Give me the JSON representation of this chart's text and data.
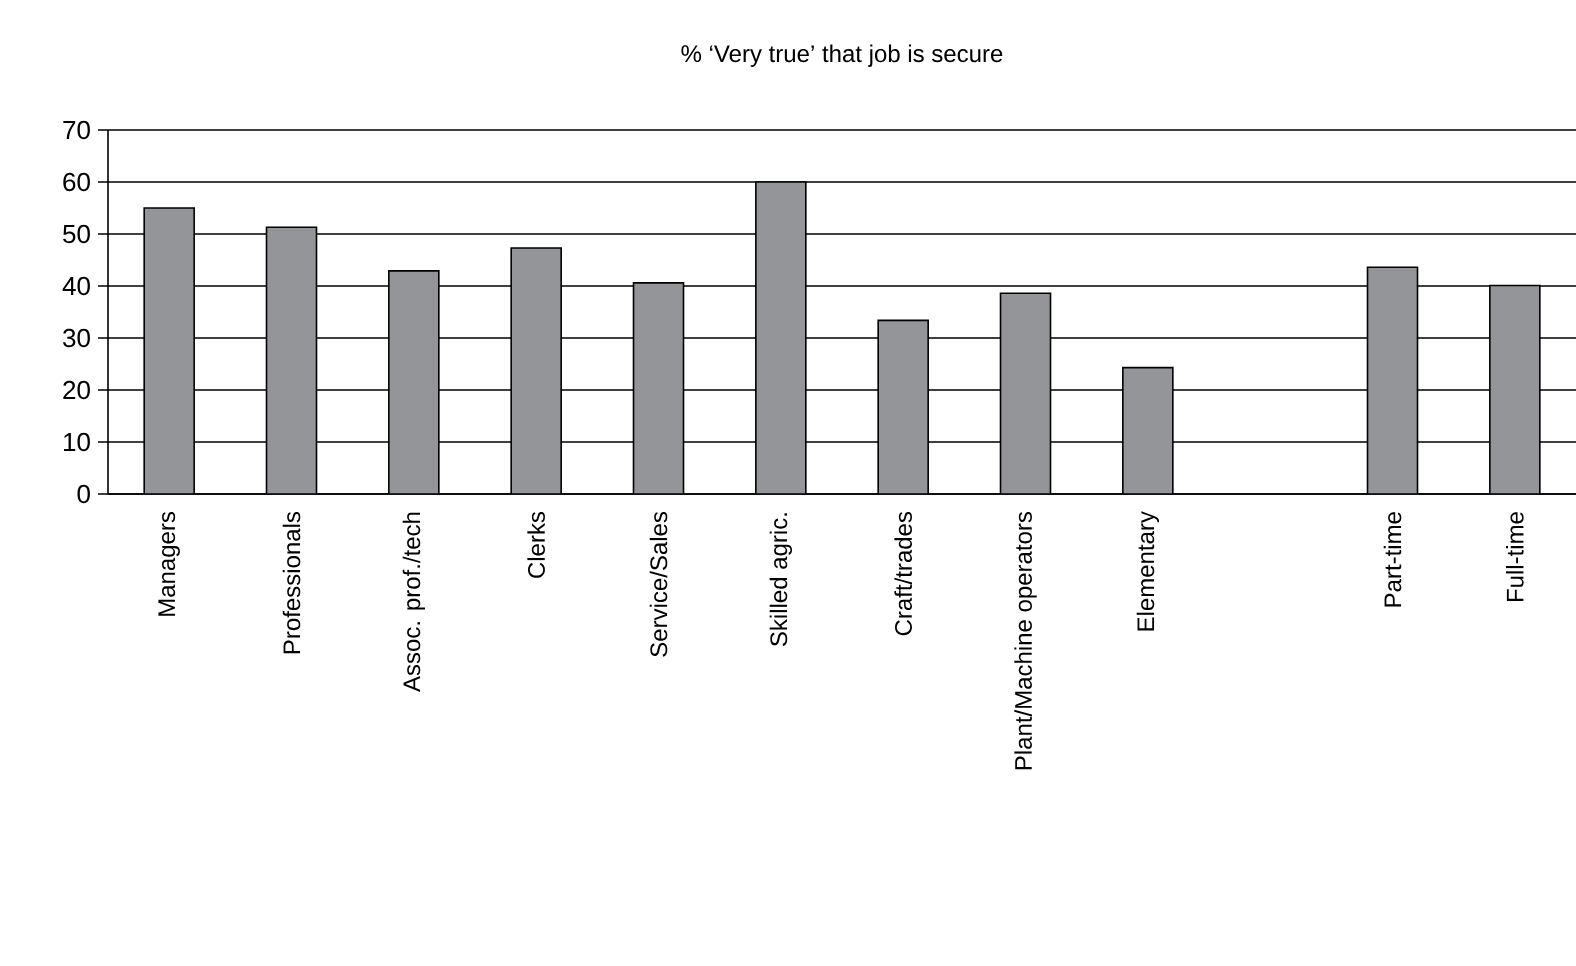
{
  "chart_data": {
    "type": "bar",
    "title": "% ‘Very true’ that job is secure",
    "categories": [
      "Managers",
      "Professionals",
      "Assoc. prof./tech",
      "Clerks",
      "Service/Sales",
      "Skilled agric.",
      "Craft/trades",
      "Plant/Machine operators",
      "Elementary",
      null,
      "Part-time",
      "Full-time"
    ],
    "values": [
      55,
      51.3,
      42.9,
      47.3,
      40.6,
      60,
      33.4,
      38.6,
      24.3,
      null,
      43.6,
      40.1
    ],
    "color": "#939598",
    "ylim": [
      0,
      70
    ],
    "yticks": [
      0,
      10,
      20,
      30,
      40,
      50,
      60,
      70
    ],
    "grid": "y"
  }
}
